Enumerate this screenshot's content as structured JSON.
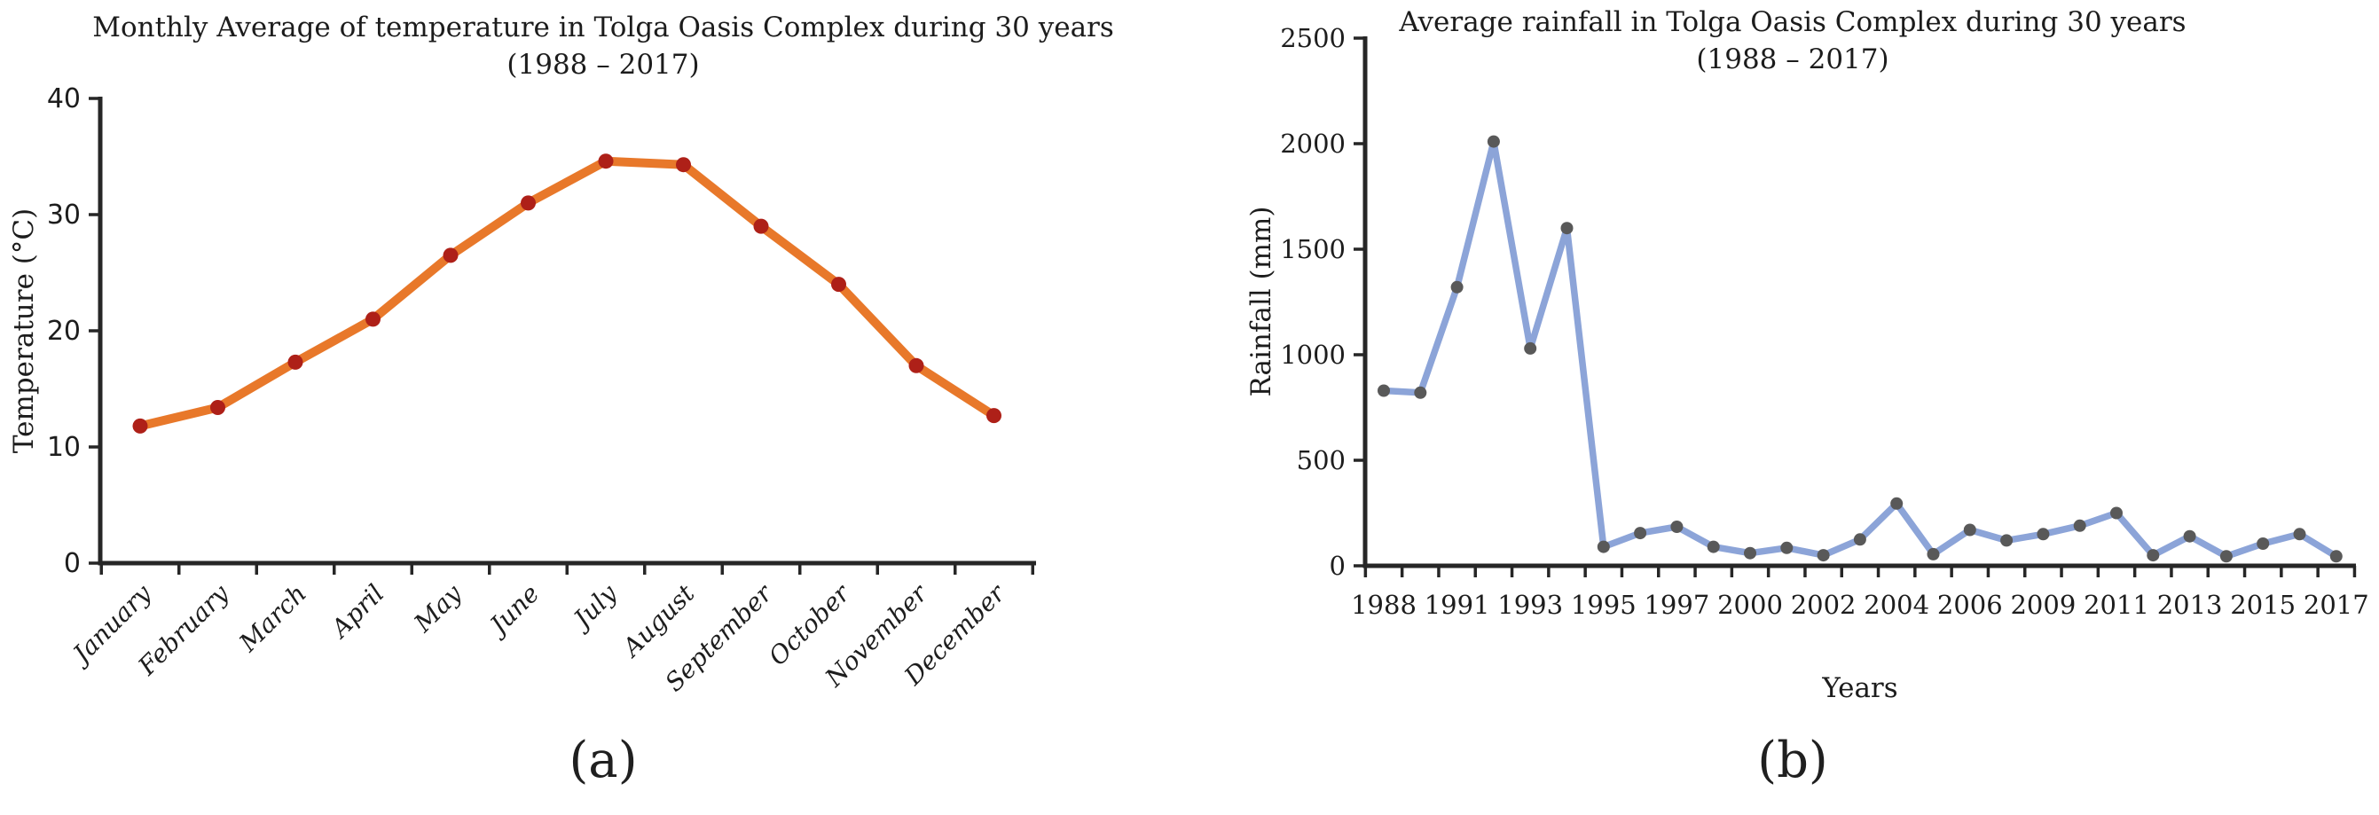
{
  "chart_data": [
    {
      "type": "line",
      "panel": "a",
      "caption": "(a)",
      "title": "Monthly Average of temperature in Tolga Oasis Complex during 30 years",
      "subtitle": "(1988 – 2017)",
      "ylabel": "Temperature (°C)",
      "xlabel": "",
      "categories": [
        "January",
        "February",
        "March",
        "April",
        "May",
        "June",
        "July",
        "August",
        "September",
        "October",
        "November",
        "December"
      ],
      "values": [
        11.8,
        13.4,
        17.3,
        21,
        26.5,
        31,
        34.6,
        34.3,
        29,
        24,
        17,
        12.7
      ],
      "ylim": [
        0,
        40
      ],
      "yticks": [
        0,
        10,
        20,
        30,
        40
      ],
      "grid": false,
      "legend": "none",
      "line_color": "#e8782a",
      "marker_color": "#ae2018"
    },
    {
      "type": "line",
      "panel": "b",
      "caption": "(b)",
      "title": "Average rainfall in Tolga Oasis Complex during 30 years",
      "subtitle": "(1988 – 2017)",
      "ylabel": "Rainfall (mm)",
      "xlabel": "Years",
      "x_tick_labels": [
        "1988",
        "1991",
        "1993",
        "1995",
        "1997",
        "2000",
        "2002",
        "2004",
        "2006",
        "2009",
        "2011",
        "2013",
        "2015",
        "2017"
      ],
      "x_tick_label_point_indices": [
        0,
        2,
        4,
        6,
        8,
        10,
        12,
        14,
        16,
        18,
        20,
        22,
        24,
        26
      ],
      "values": [
        830,
        820,
        1320,
        2010,
        1030,
        1600,
        90,
        155,
        185,
        90,
        60,
        85,
        50,
        125,
        295,
        55,
        170,
        120,
        150,
        190,
        250,
        50,
        140,
        45,
        105,
        150,
        45
      ],
      "ylim": [
        0,
        2500
      ],
      "yticks": [
        0,
        500,
        1000,
        1500,
        2000,
        2500
      ],
      "grid": false,
      "legend": "none",
      "line_color": "#8ca4d8",
      "marker_color": "#595959"
    }
  ]
}
